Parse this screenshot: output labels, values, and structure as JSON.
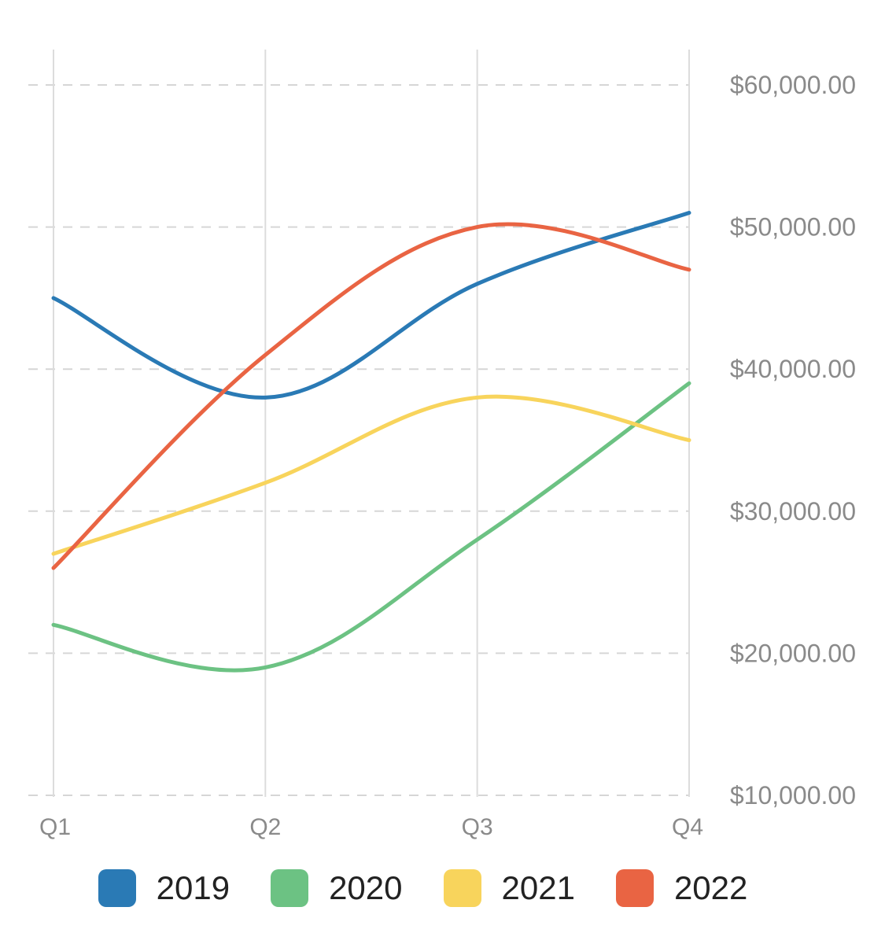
{
  "chart_data": {
    "type": "line",
    "categories": [
      "Q1",
      "Q2",
      "Q3",
      "Q4"
    ],
    "series": [
      {
        "name": "2019",
        "color": "#2a7ab5",
        "values": [
          45000,
          38000,
          46000,
          51000
        ]
      },
      {
        "name": "2020",
        "color": "#6cc283",
        "values": [
          22000,
          19000,
          28000,
          39000
        ]
      },
      {
        "name": "2021",
        "color": "#f8d45c",
        "values": [
          27000,
          32000,
          38000,
          35000
        ]
      },
      {
        "name": "2022",
        "color": "#e96443",
        "values": [
          26000,
          41000,
          50000,
          47000
        ]
      }
    ],
    "yticks": [
      "$10,000.00",
      "$20,000.00",
      "$30,000.00",
      "$40,000.00",
      "$50,000.00",
      "$60,000.00"
    ],
    "ytick_values": [
      10000,
      20000,
      30000,
      40000,
      50000,
      60000
    ],
    "ylim": [
      10000,
      60000
    ],
    "y_axis_position": "right",
    "grid": {
      "horizontal": "dashed",
      "vertical": "solid"
    },
    "legend_position": "bottom",
    "curve": "smooth"
  }
}
